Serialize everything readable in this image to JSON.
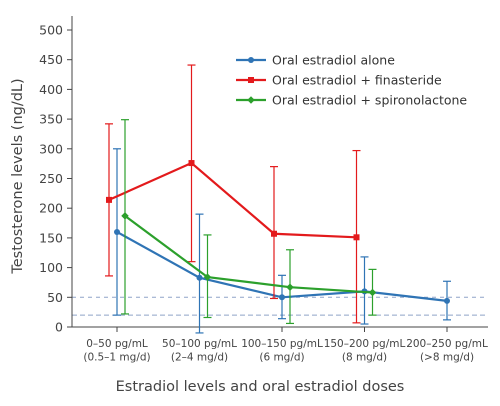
{
  "chart_data": {
    "type": "line",
    "title": "",
    "xlabel": "Estradiol levels and oral estradiol doses",
    "ylabel": "Testosterone levels (ng/dL)",
    "ylim": [
      0,
      500
    ],
    "y_ticks": [
      0,
      50,
      100,
      150,
      200,
      250,
      300,
      350,
      400,
      450,
      500
    ],
    "categories": [
      [
        "0–50 pg/mL",
        "(0.5–1 mg/d)"
      ],
      [
        "50–100 pg/mL",
        "(2–4 mg/d)"
      ],
      [
        "100–150 pg/mL",
        "(6 mg/d)"
      ],
      [
        "150–200 pg/mL",
        "(8 mg/d)"
      ],
      [
        "200–250 pg/mL",
        "(>8 mg/d)"
      ]
    ],
    "reference_lines": [
      20,
      50
    ],
    "grid": false,
    "legend_position": "top-right",
    "series": [
      {
        "name": "Oral estradiol alone",
        "color": "#2f74b5",
        "marker": "circle",
        "values": [
          160,
          83,
          50,
          60,
          44
        ],
        "err_low": [
          20,
          -10,
          14,
          5,
          12
        ],
        "err_high": [
          300,
          190,
          87,
          118,
          77
        ]
      },
      {
        "name": "Oral estradiol + finasteride",
        "color": "#e31a1c",
        "marker": "square",
        "values": [
          214,
          276,
          157,
          151,
          null
        ],
        "err_low": [
          86,
          110,
          48,
          7,
          null
        ],
        "err_high": [
          342,
          441,
          270,
          297,
          null
        ]
      },
      {
        "name": "Oral estradiol + spironolactone",
        "color": "#2ca02c",
        "marker": "diamond",
        "values": [
          187,
          84,
          67,
          58,
          null
        ],
        "err_low": [
          22,
          16,
          6,
          20,
          null
        ],
        "err_high": [
          349,
          155,
          130,
          97,
          null
        ]
      }
    ]
  }
}
